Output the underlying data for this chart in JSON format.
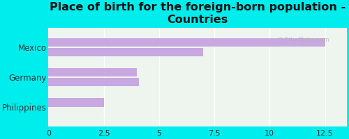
{
  "title": "Place of birth for the foreign-born population -\nCountries",
  "categories": [
    "Philippines",
    "Germany",
    "Mexico"
  ],
  "bar1_values": [
    2.5,
    4.0,
    12.5
  ],
  "bar2_values": [
    0,
    4.1,
    7.0
  ],
  "bar_color": "#c8a8e0",
  "background_color": "#00eded",
  "plot_bg_color": "#eef5ee",
  "bar_height": 0.28,
  "bar_gap": 0.04,
  "xlim": [
    0,
    13.5
  ],
  "xticks": [
    0,
    2.5,
    5,
    7.5,
    10,
    12.5
  ],
  "title_fontsize": 11.5,
  "label_fontsize": 8.5,
  "tick_fontsize": 8
}
